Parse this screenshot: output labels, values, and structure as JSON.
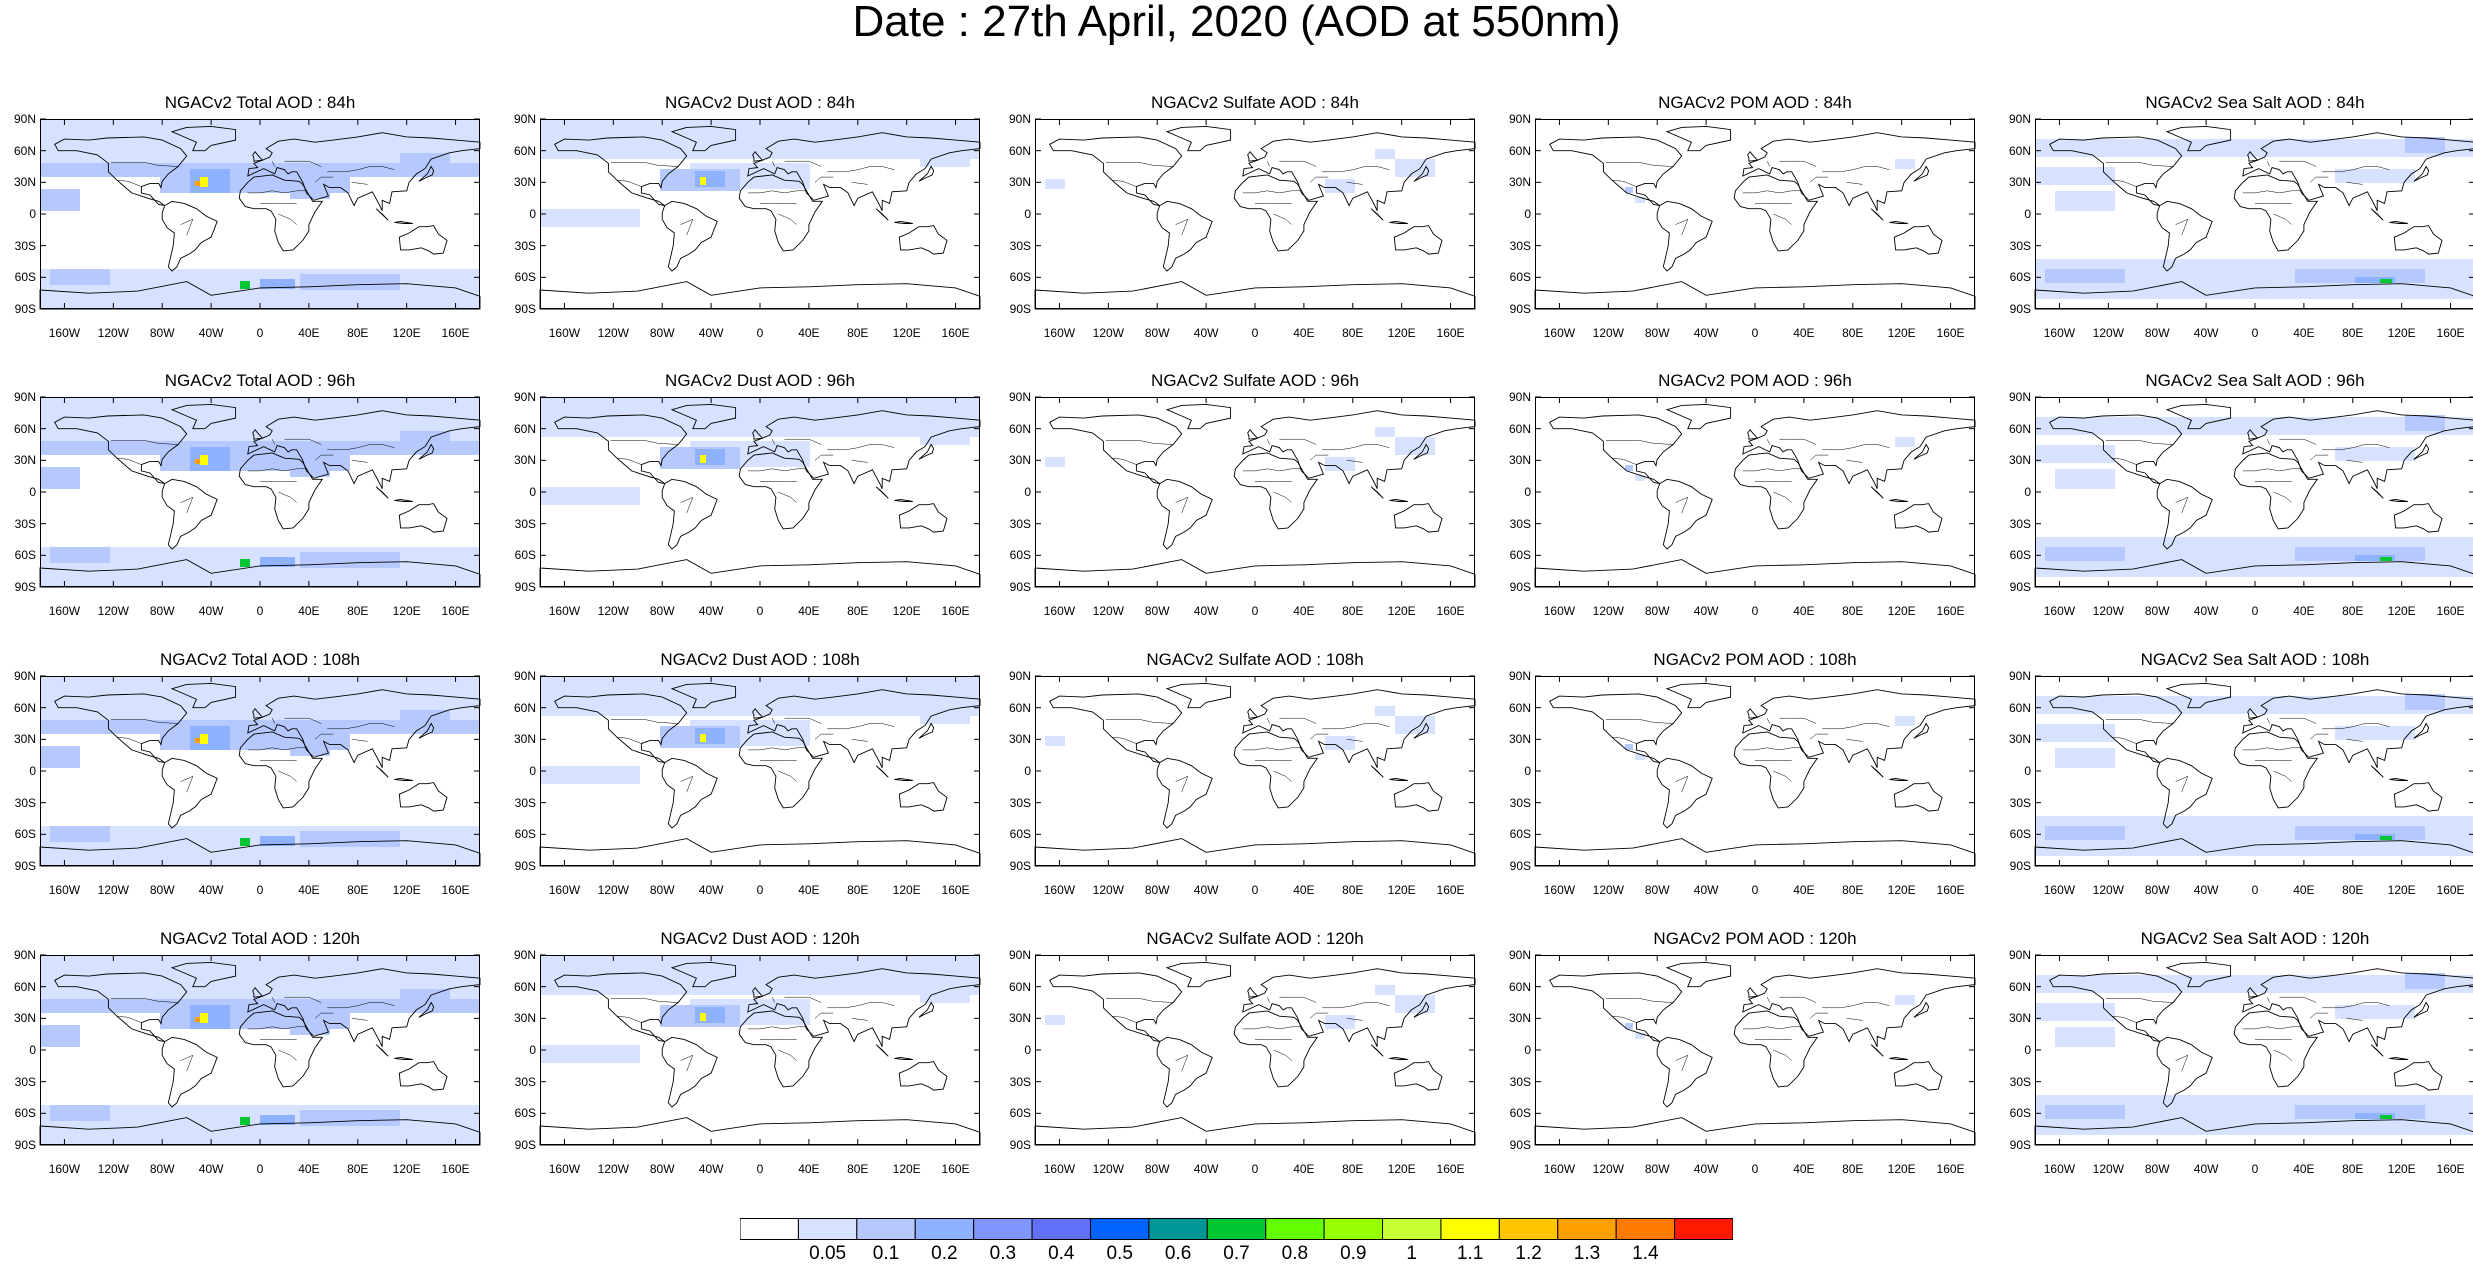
{
  "title": "Date : 27th April, 2020 (AOD at 550nm)",
  "lat_ticks": [
    "90N",
    "60N",
    "30N",
    "0",
    "30S",
    "60S",
    "90S"
  ],
  "lon_ticks": [
    "160W",
    "120W",
    "80W",
    "40W",
    "0",
    "40E",
    "80E",
    "120E",
    "160E"
  ],
  "rows": [
    {
      "lead": "84h",
      "titles": [
        "NGACv2 Total AOD : 84h",
        "NGACv2 Dust AOD : 84h",
        "NGACv2 Sulfate AOD : 84h",
        "NGACv2 POM AOD : 84h",
        "NGACv2 Sea Salt AOD : 84h"
      ]
    },
    {
      "lead": "96h",
      "titles": [
        "NGACv2 Total AOD : 96h",
        "NGACv2 Dust AOD : 96h",
        "NGACv2 Sulfate AOD : 96h",
        "NGACv2 POM AOD : 96h",
        "NGACv2 Sea Salt AOD : 96h"
      ]
    },
    {
      "lead": "108h",
      "titles": [
        "NGACv2 Total AOD : 108h",
        "NGACv2 Dust AOD : 108h",
        "NGACv2 Sulfate AOD : 108h",
        "NGACv2 POM AOD : 108h",
        "NGACv2 Sea Salt AOD : 108h"
      ]
    },
    {
      "lead": "120h",
      "titles": [
        "NGACv2 Total AOD : 120h",
        "NGACv2 Dust AOD : 120h",
        "NGACv2 Sulfate AOD : 120h",
        "NGACv2 POM AOD : 120h",
        "NGACv2 Sea Salt  AOD : 120h"
      ]
    }
  ],
  "species": [
    "total",
    "dust",
    "sulfate",
    "pom",
    "seasalt"
  ],
  "colorbar": {
    "labels": [
      "0.05",
      "0.1",
      "0.2",
      "0.3",
      "0.4",
      "0.5",
      "0.6",
      "0.7",
      "0.8",
      "0.9",
      "1",
      "1.1",
      "1.2",
      "1.3",
      "1.4"
    ],
    "colors": [
      "#ffffff",
      "#d6e2ff",
      "#b5c9ff",
      "#8eb2ff",
      "#7f96ff",
      "#6370f8",
      "#0063ff",
      "#009696",
      "#00c633",
      "#63ff00",
      "#96ff00",
      "#c6ff33",
      "#ffff00",
      "#ffc600",
      "#ffa000",
      "#ff7c00",
      "#ff1900"
    ]
  }
}
